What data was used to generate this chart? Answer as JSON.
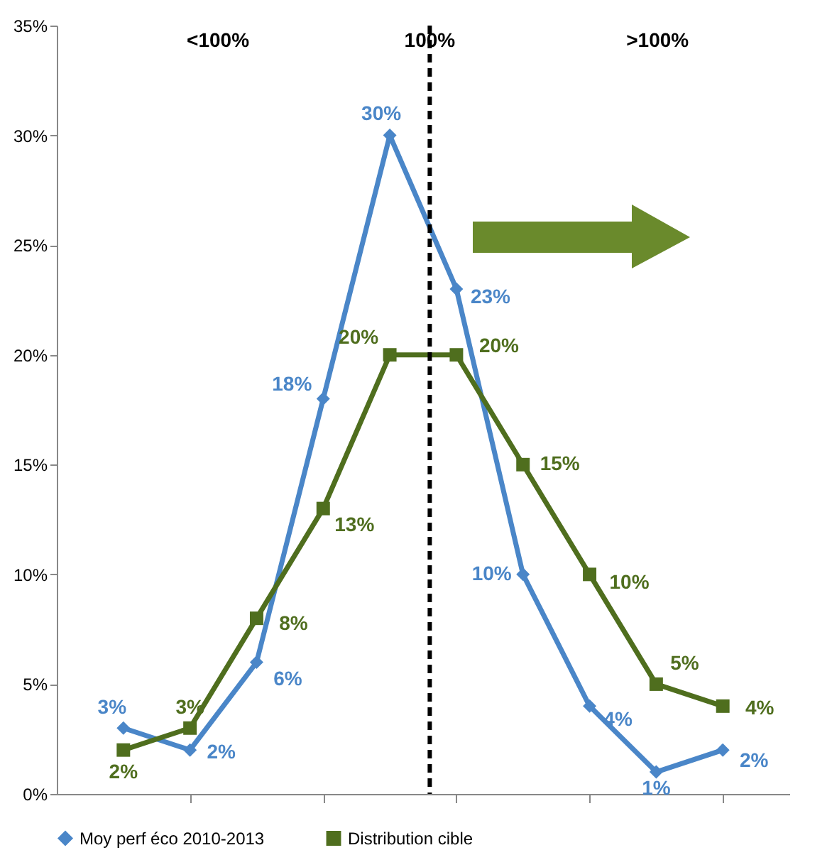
{
  "chart_data": {
    "type": "line",
    "categories": [
      null,
      null,
      null,
      null,
      null,
      null,
      null,
      null,
      null,
      null
    ],
    "series": [
      {
        "name": "Moy perf éco 2010-2013",
        "color": "#4a86c8",
        "marker": "diamond",
        "values": [
          3,
          2,
          6,
          18,
          30,
          23,
          10,
          4,
          1,
          2
        ],
        "value_labels": [
          "3%",
          "2%",
          "6%",
          "18%",
          "30%",
          "23%",
          "10%",
          "4%",
          "1%",
          "2%"
        ]
      },
      {
        "name": "Distribution cible",
        "color": "#4f6e1e",
        "marker": "square",
        "values": [
          2,
          3,
          8,
          13,
          20,
          20,
          15,
          10,
          5,
          4
        ],
        "value_labels": [
          "2%",
          "3%",
          "8%",
          "13%",
          "20%",
          "20%",
          "15%",
          "10%",
          "5%",
          "4%"
        ]
      }
    ],
    "ylim": [
      0,
      35
    ],
    "yticks": [
      {
        "value": 0,
        "label": "0%"
      },
      {
        "value": 5,
        "label": "5%"
      },
      {
        "value": 10,
        "label": "10%"
      },
      {
        "value": 15,
        "label": "15%"
      },
      {
        "value": 20,
        "label": "20%"
      },
      {
        "value": 25,
        "label": "25%"
      },
      {
        "value": 30,
        "label": "30%"
      },
      {
        "value": 35,
        "label": "35%"
      }
    ],
    "tick_labels": "y",
    "grid": false,
    "legend": "bottom",
    "ref_lines": [
      {
        "axis": "x",
        "label": "100%",
        "line_style": "dashed",
        "color": "#000000"
      }
    ],
    "annotations": [
      "<100%",
      ">100%"
    ]
  }
}
